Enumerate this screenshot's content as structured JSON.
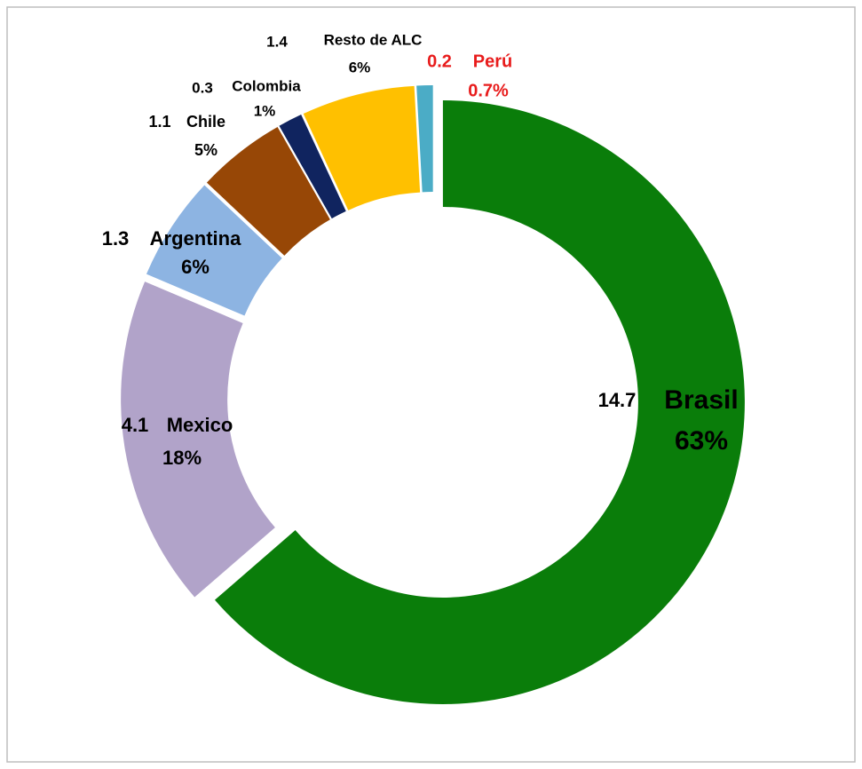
{
  "chart_data": {
    "type": "donut",
    "categories": [
      "Brasil",
      "Mexico",
      "Argentina",
      "Chile",
      "Colombia",
      "Resto de ALC",
      "Perú"
    ],
    "values": [
      14.7,
      4.1,
      1.3,
      1.1,
      0.3,
      1.4,
      0.2
    ],
    "shares": [
      63,
      18,
      6,
      5,
      1,
      6,
      0.7
    ],
    "share_labels": [
      "63%",
      "18%",
      "6%",
      "5%",
      "1%",
      "6%",
      "0.7%"
    ],
    "colors": [
      "#0a7d0a",
      "#b1a3c9",
      "#8db4e2",
      "#974706",
      "#10245f",
      "#ffc000",
      "#4bacc6"
    ],
    "label_colors": [
      "#000000",
      "#000000",
      "#000000",
      "#000000",
      "#000000",
      "#000000",
      "#e81c1c"
    ]
  }
}
